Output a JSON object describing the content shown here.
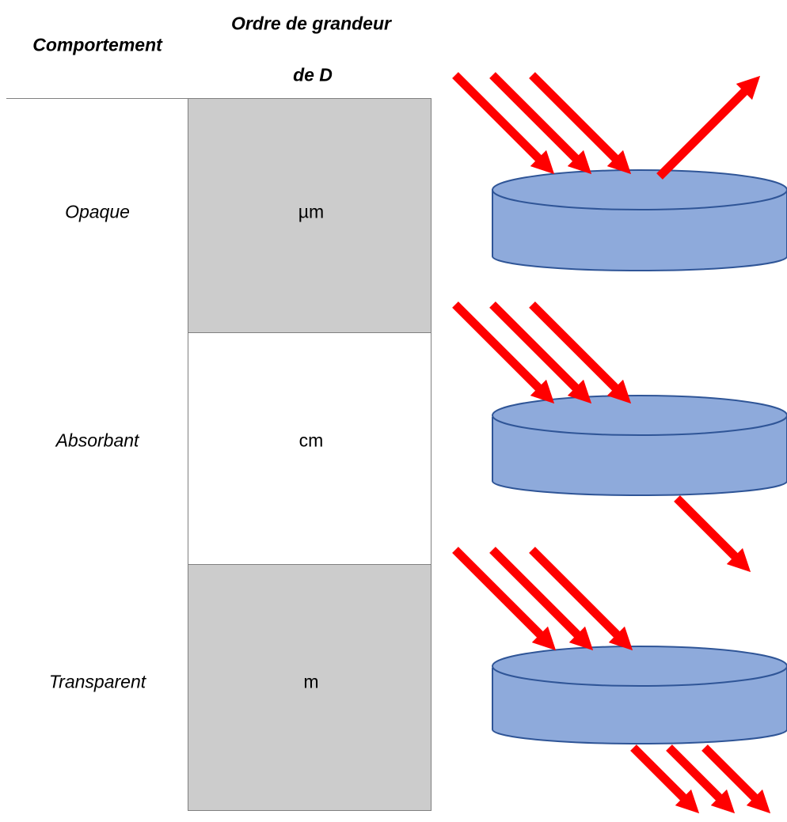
{
  "header": {
    "columns": [
      "Comportement",
      "Ordre de grandeur",
      "de D"
    ]
  },
  "table": {
    "rows": [
      [
        "Opaque",
        "µm"
      ],
      [
        "Absorbant",
        "cm"
      ],
      [
        "Transparent",
        "m"
      ]
    ]
  }
}
